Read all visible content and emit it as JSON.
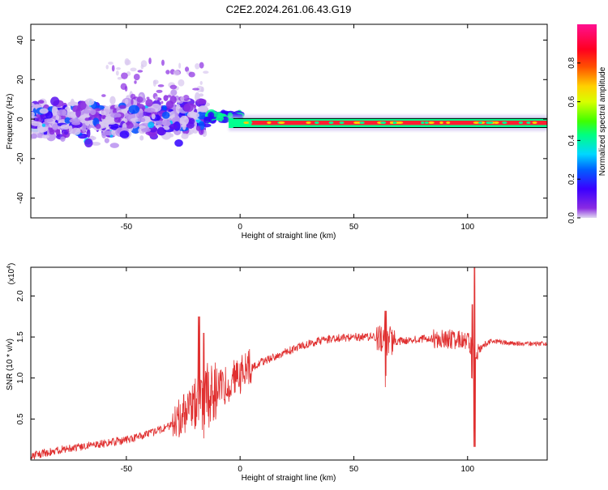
{
  "title": "C2E2.2024.261.06.43.G19",
  "charts": [
    {
      "type": "heatmap",
      "xlabel": "Height of straight line (km)",
      "ylabel": "Frequency (Hz)",
      "xlim": [
        -92,
        135
      ],
      "ylim": [
        -50,
        48
      ],
      "xticks": [
        -50,
        0,
        50,
        100
      ],
      "yticks": [
        -40,
        -20,
        0,
        20,
        40
      ],
      "colorbar": {
        "label": "Normalized spectral amplitude",
        "range": [
          0,
          1
        ],
        "ticks": [
          0.0,
          0.2,
          0.4,
          0.6,
          0.8
        ],
        "colormap": "hsv-rainbow (purple-blue-cyan-green-yellow-red-magenta)"
      },
      "description_blobs": [
        {
          "x_range": [
            -92,
            -15
          ],
          "freq_range": [
            -12,
            10
          ],
          "amplitude": "low-to-moderate, scattered"
        },
        {
          "x_range": [
            -15,
            0
          ],
          "freq_center": 1,
          "amplitude": "moderate"
        },
        {
          "x_range": [
            0,
            135
          ],
          "freq_center": -2,
          "amplitude": "high, narrow line"
        }
      ]
    },
    {
      "type": "line",
      "xlabel": "Height of straight line (km)",
      "ylabel": "SNR (10 * v/v)",
      "yscale_label": "(x10",
      "yscale_exp": "4",
      "xlim": [
        -92,
        135
      ],
      "ylim": [
        0,
        2.35
      ],
      "xticks": [
        -50,
        0,
        50,
        100
      ],
      "yticks": [
        0.5,
        1.0,
        1.5,
        2.0
      ],
      "series": [
        {
          "color": "#e03030",
          "x": [
            -92,
            -80,
            -70,
            -60,
            -50,
            -40,
            -30,
            -25,
            -20,
            -15,
            -10,
            -5,
            0,
            5,
            10,
            20,
            30,
            40,
            50,
            60,
            64,
            70,
            80,
            90,
            100,
            103,
            110,
            120,
            135
          ],
          "y": [
            0.05,
            0.12,
            0.16,
            0.2,
            0.25,
            0.32,
            0.42,
            0.55,
            0.7,
            0.78,
            0.85,
            0.95,
            1.05,
            1.12,
            1.2,
            1.32,
            1.42,
            1.48,
            1.5,
            1.5,
            1.45,
            1.45,
            1.48,
            1.48,
            1.45,
            1.3,
            1.45,
            1.42,
            1.42
          ]
        }
      ],
      "spikes": [
        {
          "x": -18,
          "y_max": 1.75
        },
        {
          "x": -16,
          "y_max": 1.55
        },
        {
          "x": 64,
          "y_max": 1.82
        },
        {
          "x": 102,
          "y_max": 1.9
        },
        {
          "x": 103,
          "y_max": 2.35,
          "y_min": 0.16
        }
      ]
    }
  ]
}
